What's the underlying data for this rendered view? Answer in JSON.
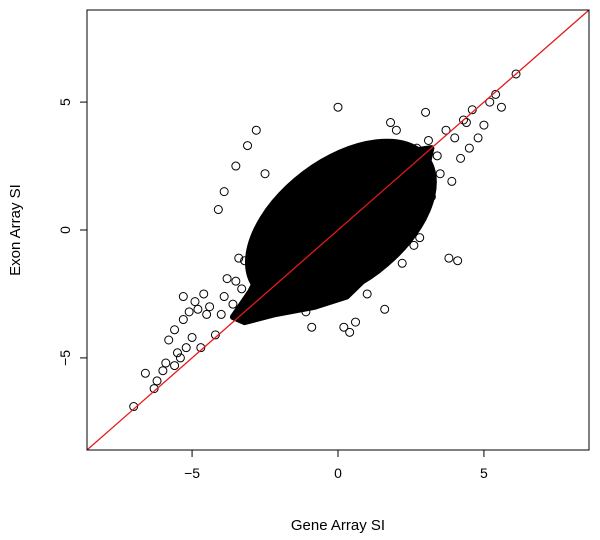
{
  "chart_data": {
    "type": "scatter",
    "xlabel": "Gene Array SI",
    "ylabel": "Exon Array SI",
    "xlim": [
      -8.6,
      8.6
    ],
    "ylim": [
      -8.6,
      8.6
    ],
    "x_ticks": [
      -5,
      0,
      5
    ],
    "y_ticks": [
      -5,
      0,
      5
    ],
    "x_tick_labels": [
      "−5",
      "0",
      "5"
    ],
    "y_tick_labels": [
      "−5",
      "0",
      "5"
    ],
    "grid": false,
    "reference_line": {
      "type": "identity",
      "slope": 1,
      "intercept": 0,
      "color": "#e31a1c"
    },
    "marker": "open-circle",
    "point_color": "#000000",
    "series": [
      {
        "x": [
          -7.0,
          -6.6,
          -6.3,
          -6.2,
          -6.0,
          -5.9,
          -5.8,
          -5.6,
          -5.6,
          -5.5,
          -5.4,
          -5.3,
          -5.3,
          -5.2,
          -5.1,
          -5.0,
          -4.9,
          -4.8,
          -4.7,
          -4.6,
          -4.5,
          -4.4,
          -4.2,
          -4.0,
          -3.9,
          -3.8,
          -3.6,
          -3.5,
          -3.4,
          -3.3,
          -3.2,
          -3.0,
          -2.9,
          -2.7,
          -2.6,
          -2.4,
          -2.2,
          -2.1,
          -1.9,
          -1.7,
          -1.5,
          -1.3,
          -1.2,
          -1.0,
          -0.8,
          -0.6,
          -0.5,
          -0.3,
          -0.1,
          0.1,
          0.3,
          0.5,
          0.7,
          0.9,
          1.1,
          1.3,
          1.5,
          1.7,
          1.9,
          2.1,
          2.3,
          2.5,
          2.7,
          2.9,
          3.1,
          3.2,
          3.4,
          3.5,
          3.7,
          3.9,
          4.0,
          4.2,
          4.3,
          4.5,
          4.6,
          4.8,
          5.0,
          5.2,
          5.4,
          5.6,
          6.1,
          -3.1,
          -2.8,
          -3.5,
          -2.5,
          0.0,
          0.2,
          0.4,
          1.6,
          2.2,
          3.8,
          4.1,
          2.6,
          1.0,
          -1.1,
          -0.9,
          3.0,
          4.4,
          2.0,
          -4.1,
          -3.9,
          -2.0,
          1.8,
          2.8,
          0.6
        ],
        "y": [
          -6.9,
          -5.6,
          -6.2,
          -5.9,
          -5.5,
          -5.2,
          -4.3,
          -3.9,
          -5.3,
          -4.8,
          -5.0,
          -3.5,
          -2.6,
          -4.6,
          -3.2,
          -4.2,
          -2.8,
          -3.1,
          -4.6,
          -2.5,
          -3.3,
          -3.0,
          -4.1,
          -3.3,
          -2.6,
          -1.9,
          -2.9,
          -2.0,
          -1.1,
          -2.3,
          -1.2,
          -1.5,
          -0.6,
          -0.9,
          -0.1,
          -0.5,
          0.3,
          -0.2,
          0.6,
          0.1,
          0.9,
          0.5,
          1.3,
          0.7,
          1.8,
          0.9,
          2.1,
          1.2,
          2.4,
          1.0,
          2.0,
          1.4,
          2.5,
          0.4,
          1.9,
          0.2,
          2.2,
          0.8,
          2.9,
          1.0,
          2.7,
          1.1,
          3.2,
          1.6,
          3.5,
          1.3,
          2.9,
          2.2,
          3.9,
          1.9,
          3.6,
          2.8,
          4.3,
          3.2,
          4.7,
          3.6,
          4.1,
          5.0,
          5.3,
          4.8,
          6.1,
          3.3,
          3.9,
          2.5,
          2.2,
          4.8,
          -3.8,
          -4.0,
          -3.1,
          -1.3,
          -1.1,
          -1.2,
          -0.6,
          -2.5,
          -3.2,
          -3.8,
          4.6,
          4.2,
          3.9,
          0.8,
          1.5,
          -2.9,
          4.2,
          -0.3,
          -3.6
        ]
      }
    ]
  }
}
